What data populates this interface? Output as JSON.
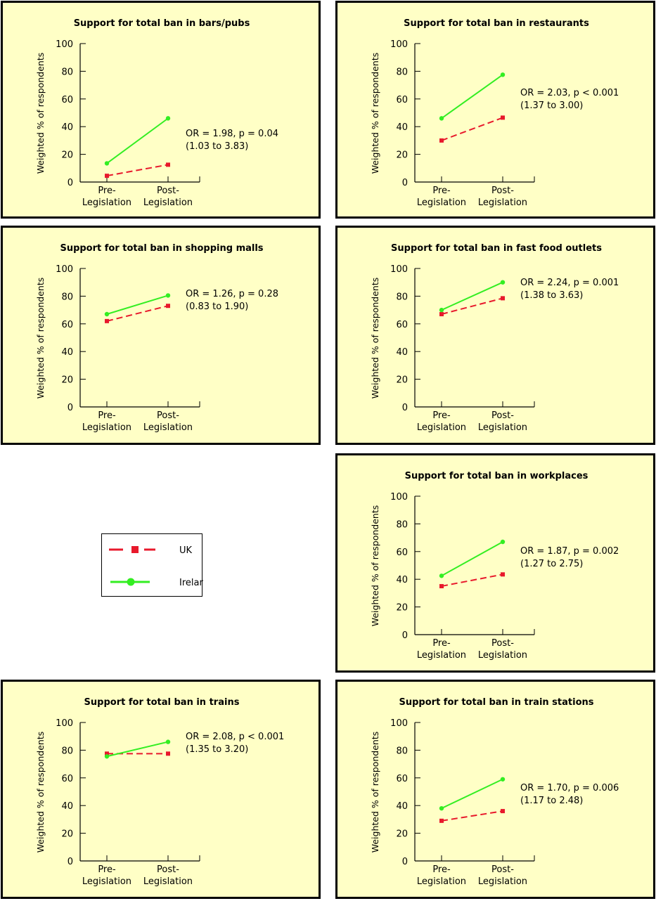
{
  "legend": {
    "uk": "UK",
    "ireland": "Ireland"
  },
  "colors": {
    "uk": "#e8192c",
    "ireland": "#33ee22",
    "panel_bg": "#ffffc6"
  },
  "chart_data": [
    {
      "type": "line",
      "title": "Support for total ban in bars/pubs",
      "ylabel": "Weighted % of respondents",
      "ylim": [
        0,
        100
      ],
      "yticks": [
        "0",
        "20",
        "40",
        "60",
        "80",
        "100"
      ],
      "categories": [
        [
          "Pre-",
          "Legislation"
        ],
        [
          "Post-",
          "Legislation"
        ]
      ],
      "series": [
        {
          "name": "UK",
          "values": [
            4.5,
            12.5
          ]
        },
        {
          "name": "Ireland",
          "values": [
            13.5,
            46
          ]
        }
      ],
      "annotation": [
        "OR = 1.98, p = 0.04",
        "(1.03 to 3.83)"
      ]
    },
    {
      "type": "line",
      "title": "Support for total ban in restaurants",
      "ylabel": "Weighted % of respondents",
      "ylim": [
        0,
        100
      ],
      "yticks": [
        "0",
        "20",
        "40",
        "60",
        "80",
        "100"
      ],
      "categories": [
        [
          "Pre-",
          "Legislation"
        ],
        [
          "Post-",
          "Legislation"
        ]
      ],
      "series": [
        {
          "name": "UK",
          "values": [
            30,
            46.5
          ]
        },
        {
          "name": "Ireland",
          "values": [
            46,
            77.5
          ]
        }
      ],
      "annotation": [
        "OR = 2.03, p < 0.001",
        "(1.37 to 3.00)"
      ]
    },
    {
      "type": "line",
      "title": "Support for total ban in shopping malls",
      "ylabel": "Weighted % of respondents",
      "ylim": [
        0,
        100
      ],
      "yticks": [
        "0",
        "20",
        "40",
        "60",
        "80",
        "100"
      ],
      "categories": [
        [
          "Pre-",
          "Legislation"
        ],
        [
          "Post-",
          "Legislation"
        ]
      ],
      "series": [
        {
          "name": "UK",
          "values": [
            62,
            73
          ]
        },
        {
          "name": "Ireland",
          "values": [
            67,
            80.5
          ]
        }
      ],
      "annotation": [
        "OR = 1.26, p = 0.28",
        "(0.83 to 1.90)"
      ]
    },
    {
      "type": "line",
      "title": "Support for total ban in fast food outlets",
      "ylabel": "Weighted % of respondents",
      "ylim": [
        0,
        100
      ],
      "yticks": [
        "0",
        "20",
        "40",
        "60",
        "80",
        "100"
      ],
      "categories": [
        [
          "Pre-",
          "Legislation"
        ],
        [
          "Post-",
          "Legislation"
        ]
      ],
      "series": [
        {
          "name": "UK",
          "values": [
            67,
            78.5
          ]
        },
        {
          "name": "Ireland",
          "values": [
            70,
            90
          ]
        }
      ],
      "annotation": [
        "OR = 2.24, p = 0.001",
        "(1.38 to 3.63)"
      ]
    },
    {
      "type": "line",
      "title": "Support for total ban in workplaces",
      "ylabel": "Weighted % of respondents",
      "ylim": [
        0,
        100
      ],
      "yticks": [
        "0",
        "20",
        "40",
        "60",
        "80",
        "100"
      ],
      "categories": [
        [
          "Pre-",
          "Legislation"
        ],
        [
          "Post-",
          "Legislation"
        ]
      ],
      "series": [
        {
          "name": "UK",
          "values": [
            35,
            43.5
          ]
        },
        {
          "name": "Ireland",
          "values": [
            42.5,
            67
          ]
        }
      ],
      "annotation": [
        "OR = 1.87, p = 0.002",
        "(1.27 to 2.75)"
      ]
    },
    {
      "type": "line",
      "title": "Support for total ban in trains",
      "ylabel": "Weighted % of respondents",
      "ylim": [
        0,
        100
      ],
      "yticks": [
        "0",
        "20",
        "40",
        "60",
        "80",
        "100"
      ],
      "categories": [
        [
          "Pre-",
          "Legislation"
        ],
        [
          "Post-",
          "Legislation"
        ]
      ],
      "series": [
        {
          "name": "UK",
          "values": [
            77.5,
            77.5
          ]
        },
        {
          "name": "Ireland",
          "values": [
            75.5,
            86
          ]
        }
      ],
      "annotation": [
        "OR = 2.08, p < 0.001",
        "(1.35 to 3.20)"
      ]
    },
    {
      "type": "line",
      "title": "Support for total ban in train stations",
      "ylabel": "Weighted % of respondents",
      "ylim": [
        0,
        100
      ],
      "yticks": [
        "0",
        "20",
        "40",
        "60",
        "80",
        "100"
      ],
      "categories": [
        [
          "Pre-",
          "Legislation"
        ],
        [
          "Post-",
          "Legislation"
        ]
      ],
      "series": [
        {
          "name": "UK",
          "values": [
            29,
            36
          ]
        },
        {
          "name": "Ireland",
          "values": [
            38,
            59
          ]
        }
      ],
      "annotation": [
        "OR = 1.70, p = 0.006",
        "(1.17 to 2.48)"
      ]
    }
  ]
}
